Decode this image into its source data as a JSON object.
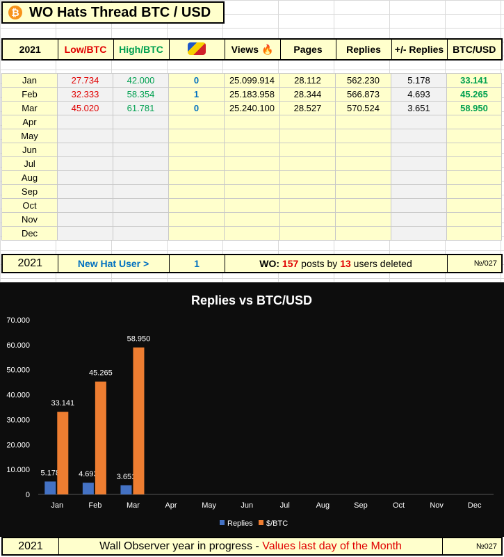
{
  "title": "WO Hats Thread BTC / USD",
  "header": {
    "year": "2021",
    "low": "Low/BTC",
    "high": "High/BTC",
    "views": "Views",
    "pages": "Pages",
    "replies": "Replies",
    "delta": "+/- Replies",
    "btcusd": "BTC/USD"
  },
  "rows": [
    {
      "month": "Jan",
      "low": "27.734",
      "high": "42.000",
      "hats": "0",
      "views": "25.099.914",
      "pages": "28.112",
      "replies": "562.230",
      "delta": "5.178",
      "btc": "33.141"
    },
    {
      "month": "Feb",
      "low": "32.333",
      "high": "58.354",
      "hats": "1",
      "views": "25.183.958",
      "pages": "28.344",
      "replies": "566.873",
      "delta": "4.693",
      "btc": "45.265"
    },
    {
      "month": "Mar",
      "low": "45.020",
      "high": "61.781",
      "hats": "0",
      "views": "25.240.100",
      "pages": "28.527",
      "replies": "570.524",
      "delta": "3.651",
      "btc": "58.950"
    },
    {
      "month": "Apr"
    },
    {
      "month": "May"
    },
    {
      "month": "Jun"
    },
    {
      "month": "Jul"
    },
    {
      "month": "Aug"
    },
    {
      "month": "Sep"
    },
    {
      "month": "Oct"
    },
    {
      "month": "Nov"
    },
    {
      "month": "Dec"
    }
  ],
  "summary": {
    "year": "2021",
    "new_hat": "New Hat User >",
    "count": "1",
    "wo_label": "WO:",
    "posts": "157",
    "posts_mid": "posts by",
    "users": "13",
    "users_tail": "users deleted",
    "ref": "№/027"
  },
  "chart_data": {
    "type": "bar",
    "title": "Replies vs BTC/USD",
    "categories": [
      "Jan",
      "Feb",
      "Mar",
      "Apr",
      "May",
      "Jun",
      "Jul",
      "Aug",
      "Sep",
      "Oct",
      "Nov",
      "Dec"
    ],
    "series": [
      {
        "name": "Replies",
        "color": "#4472c4",
        "values": [
          5178,
          4693,
          3651,
          null,
          null,
          null,
          null,
          null,
          null,
          null,
          null,
          null
        ],
        "labels": [
          "5.178",
          "4.693",
          "3.651"
        ]
      },
      {
        "name": "$/BTC",
        "color": "#ed7d31",
        "values": [
          33141,
          45265,
          58950,
          null,
          null,
          null,
          null,
          null,
          null,
          null,
          null,
          null
        ],
        "labels": [
          "33.141",
          "45.265",
          "58.950"
        ]
      }
    ],
    "ylim": [
      0,
      70000
    ],
    "yticks": [
      "0",
      "10.000",
      "20.000",
      "30.000",
      "40.000",
      "50.000",
      "60.000",
      "70.000"
    ],
    "legend": "bottom"
  },
  "footer": {
    "year": "2021",
    "text": "Wall Observer year in progress -",
    "highlight": "Values last day of the Month",
    "ref": "№027"
  },
  "colors": {
    "cell_yellow": "#ffffcc",
    "cell_gray": "#f2f2f2",
    "red": "#e00000",
    "green": "#00a050",
    "blue": "#0070c0",
    "chart_bg": "#0d0d0d"
  }
}
